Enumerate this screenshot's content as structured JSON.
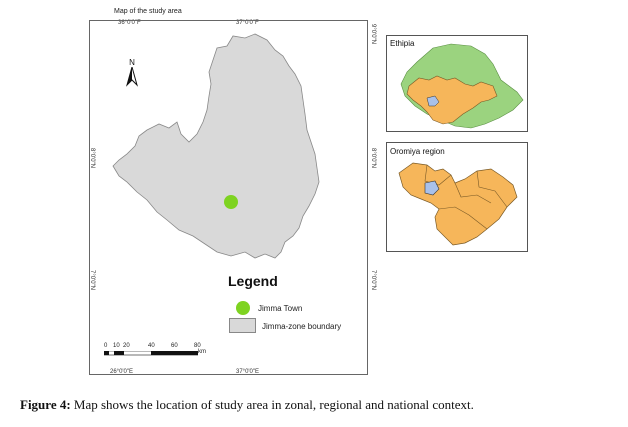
{
  "map": {
    "title": "Map of the study area",
    "top_ticks": [
      "36°0'0\"F",
      "37°0'0\"F"
    ],
    "bottom_ticks": [
      "26°0'0\"E",
      "37°0'0\"E"
    ],
    "left_ticks": [
      "8°0'0\"N",
      "7°0'0\"N"
    ],
    "right_ticks": [
      "9°0'0\"N",
      "8°0'0\"N",
      "7°0'0\"N"
    ],
    "north_label": "N",
    "colors": {
      "zone_fill": "#d9d9d9",
      "zone_stroke": "#888888",
      "town": "#7ed321",
      "region_fill": "#f6b65a",
      "ethiopia_fill": "#9bd37f",
      "zone_highlight": "#a9c1ea"
    }
  },
  "legend": {
    "title": "Legend",
    "items": [
      {
        "label": "Jimma Town",
        "symbol": "green-dot"
      },
      {
        "label": "Jimma-zone boundary",
        "symbol": "grey-box"
      }
    ]
  },
  "scalebar": {
    "labels": [
      "0",
      "10",
      "20",
      "40",
      "60",
      "80"
    ],
    "unit": "km"
  },
  "insets": {
    "ethiopia": {
      "label": "Ethipia"
    },
    "oromiya": {
      "label": "Oromiya region"
    }
  },
  "caption": {
    "prefix": "Figure 4:",
    "text": " Map shows the location of study area in zonal, regional and national context."
  }
}
